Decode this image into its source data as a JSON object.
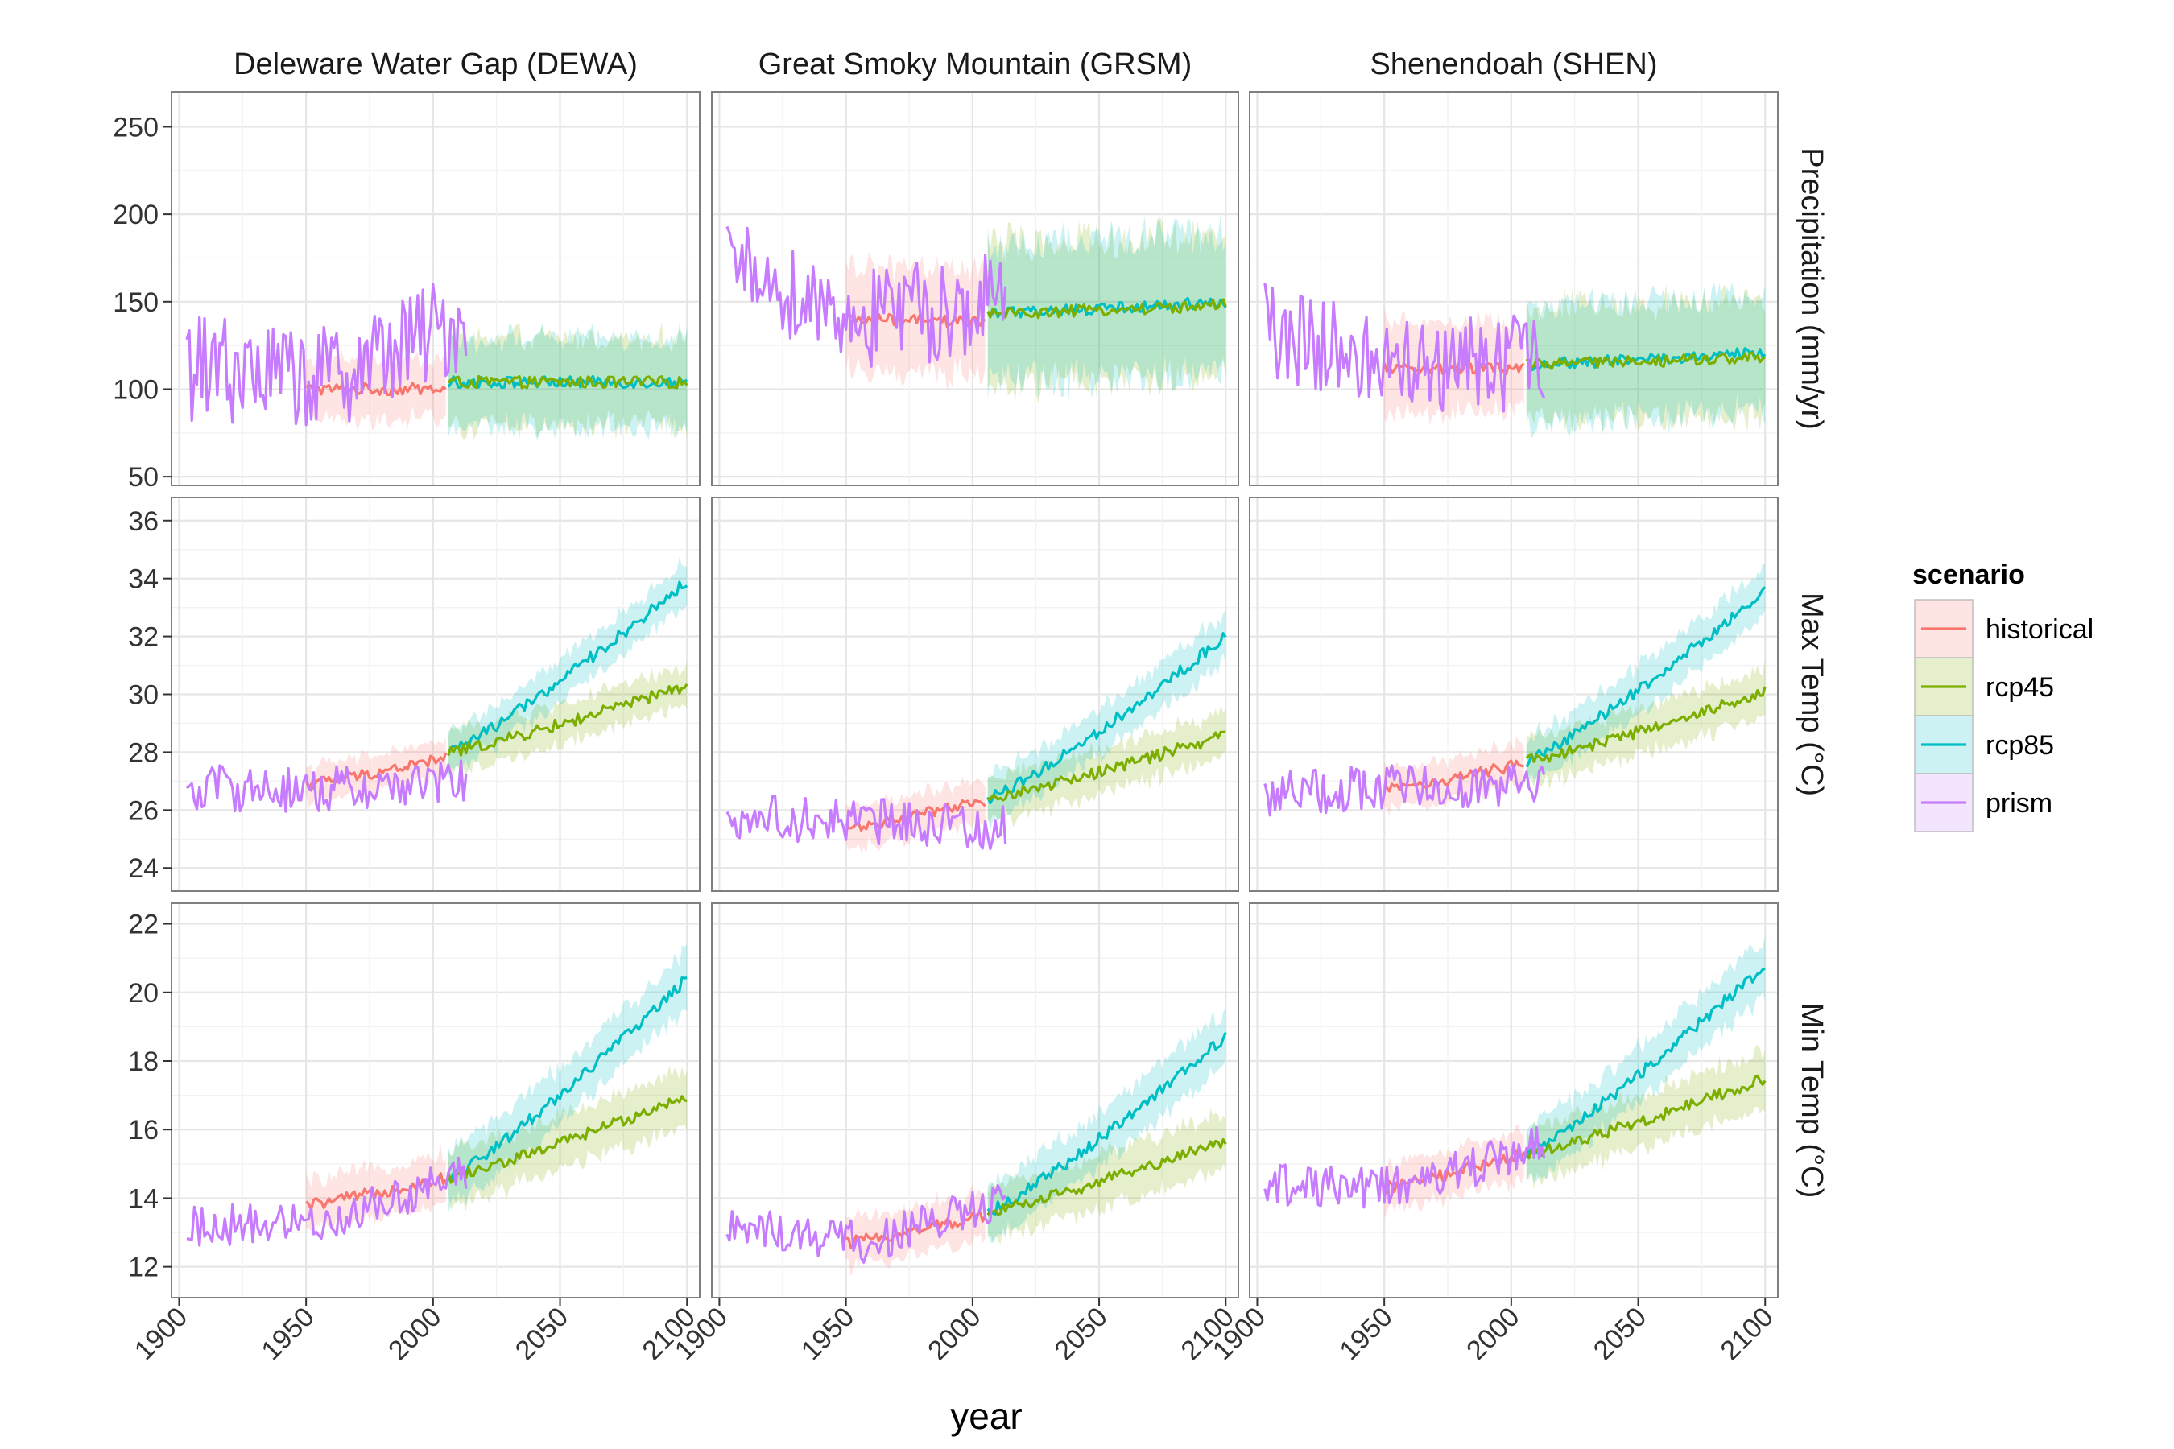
{
  "chart_data": {
    "type": "line",
    "xlabel": "year",
    "xlim": [
      1897,
      2105
    ],
    "xticks": [
      1900,
      1950,
      2000,
      2050,
      2100
    ],
    "columns": [
      "Deleware Water Gap (DEWA)",
      "Great Smoky Mountain (GRSM)",
      "Shenendoah (SHEN)"
    ],
    "rows": [
      {
        "label": "Precipitation (mm/yr)",
        "ylim": [
          45,
          270
        ],
        "yticks": [
          50,
          100,
          150,
          200,
          250
        ]
      },
      {
        "label": "Max Temp (°C)",
        "ylim": [
          23.2,
          36.8
        ],
        "yticks": [
          24,
          26,
          28,
          30,
          32,
          34,
          36
        ]
      },
      {
        "label": "Min Temp (°C)",
        "ylim": [
          11.1,
          22.6
        ],
        "yticks": [
          12,
          14,
          16,
          18,
          20,
          22
        ]
      }
    ],
    "legend": {
      "title": "scenario",
      "position": "right",
      "entries": [
        {
          "name": "historical",
          "color": "#F8766D"
        },
        {
          "name": "rcp45",
          "color": "#7CAE00"
        },
        {
          "name": "rcp85",
          "color": "#00BFC4"
        },
        {
          "name": "prism",
          "color": "#C77CFF"
        }
      ]
    },
    "series_info": {
      "historical": {
        "x": [
          1950,
          2005
        ],
        "shaded_range": true
      },
      "rcp45": {
        "x": [
          2006,
          2100
        ],
        "shaded_range": true
      },
      "rcp85": {
        "x": [
          2006,
          2100
        ],
        "shaded_range": true
      },
      "prism": {
        "x": [
          1903,
          2013
        ],
        "shaded_range": false
      }
    },
    "panels": [
      {
        "column": 0,
        "row": 0,
        "hist_mean": [
          100,
          100
        ],
        "hist_spread": 17,
        "rcp45": [
          104,
          104
        ],
        "rcp85": [
          104,
          104
        ],
        "fut_spread": 25,
        "prism_mean": [
          112,
          106,
          140
        ],
        "prism_amp": 30
      },
      {
        "column": 0,
        "row": 1,
        "hist_mean": [
          26.9,
          27.8
        ],
        "hist_spread": 0.6,
        "rcp45": [
          28.0,
          30.3
        ],
        "rcp85": [
          28.0,
          33.9
        ],
        "fut_spread": 0.7,
        "prism_mean": [
          26.8,
          26.7,
          27.0
        ],
        "prism_amp": 0.8
      },
      {
        "column": 0,
        "row": 2,
        "hist_mean": [
          13.8,
          14.6
        ],
        "hist_spread": 0.7,
        "rcp45": [
          14.6,
          17.0
        ],
        "rcp85": [
          14.6,
          20.4
        ],
        "fut_spread": 0.8,
        "prism_mean": [
          13.2,
          13.3,
          14.7
        ],
        "prism_amp": 0.6
      },
      {
        "column": 1,
        "row": 0,
        "hist_mean": [
          140,
          138
        ],
        "hist_spread": 30,
        "rcp45": [
          143,
          148
        ],
        "rcp85": [
          143,
          150
        ],
        "fut_spread": 40,
        "prism_mean": [
          170,
          140,
          150
        ],
        "prism_amp": 30
      },
      {
        "column": 1,
        "row": 1,
        "hist_mean": [
          25.4,
          26.3
        ],
        "hist_spread": 0.7,
        "rcp45": [
          26.4,
          28.6
        ],
        "rcp85": [
          26.4,
          32.0
        ],
        "fut_spread": 0.8,
        "prism_mean": [
          25.8,
          25.6,
          25.4
        ],
        "prism_amp": 0.8
      },
      {
        "column": 1,
        "row": 2,
        "hist_mean": [
          12.7,
          13.5
        ],
        "hist_spread": 0.7,
        "rcp45": [
          13.6,
          15.7
        ],
        "rcp85": [
          13.6,
          18.7
        ],
        "fut_spread": 0.8,
        "prism_mean": [
          13.2,
          12.7,
          13.9
        ],
        "prism_amp": 0.6
      },
      {
        "column": 2,
        "row": 0,
        "hist_mean": [
          112,
          112
        ],
        "hist_spread": 25,
        "rcp45": [
          114,
          118
        ],
        "rcp85": [
          114,
          121
        ],
        "fut_spread": 33,
        "prism_mean": [
          133,
          112,
          115
        ],
        "prism_amp": 28
      },
      {
        "column": 2,
        "row": 1,
        "hist_mean": [
          26.7,
          27.6
        ],
        "hist_spread": 0.7,
        "rcp45": [
          27.7,
          30.1
        ],
        "rcp85": [
          27.7,
          33.6
        ],
        "fut_spread": 0.8,
        "prism_mean": [
          26.6,
          26.8,
          27.0
        ],
        "prism_amp": 0.8
      },
      {
        "column": 2,
        "row": 2,
        "hist_mean": [
          14.3,
          15.3
        ],
        "hist_spread": 0.7,
        "rcp45": [
          15.3,
          17.5
        ],
        "rcp85": [
          15.3,
          20.8
        ],
        "fut_spread": 0.8,
        "prism_mean": [
          14.4,
          14.3,
          15.6
        ],
        "prism_amp": 0.6
      }
    ]
  }
}
